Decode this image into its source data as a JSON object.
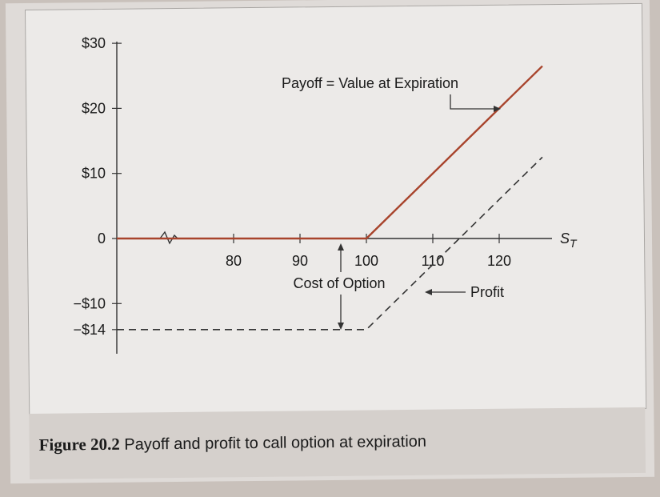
{
  "caption": {
    "figure_number": "Figure 20.2",
    "text": "Payoff and profit to call option at expiration"
  },
  "colors": {
    "payoff_line": "#a8442c",
    "profit_line": "#333333",
    "axis": "#333333",
    "text": "#1a1a1a"
  },
  "chart_data": {
    "type": "line",
    "title": "",
    "xlabel": "S_T",
    "ylabel": "",
    "xlim": [
      75,
      125
    ],
    "ylim": [
      -17,
      33
    ],
    "x_ticks": [
      80,
      90,
      100,
      110,
      120
    ],
    "x_tick_labels": [
      "80",
      "90",
      "100",
      "110",
      "120"
    ],
    "y_ticks": [
      30,
      20,
      10,
      0,
      -10,
      -14
    ],
    "y_tick_labels": [
      "$30",
      "$20",
      "$10",
      "0",
      "−$10",
      "−$14"
    ],
    "axis_break_on_x": true,
    "series": [
      {
        "name": "Payoff",
        "style": "solid",
        "x": [
          75,
          100,
          126.5
        ],
        "y": [
          0,
          0,
          26.5
        ]
      },
      {
        "name": "Profit",
        "style": "dashed",
        "x": [
          75,
          100,
          126.5
        ],
        "y": [
          -14,
          -14,
          12.5
        ]
      }
    ],
    "annotations": {
      "payoff_label": "Payoff = Value at Expiration",
      "profit_label": "Profit",
      "cost_label": "Cost of Option",
      "x_axis_label_main": "S",
      "x_axis_label_sub": "T"
    }
  }
}
